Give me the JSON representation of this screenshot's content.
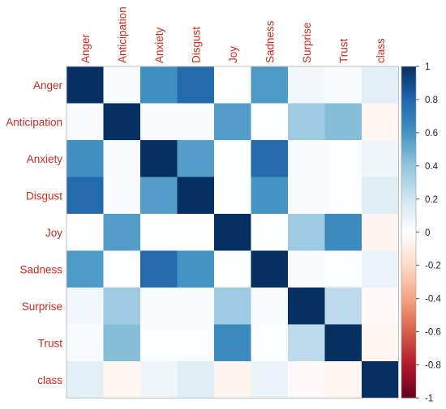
{
  "chart_data": {
    "type": "heatmap",
    "variables": [
      "Anger",
      "Anticipation",
      "Anxiety",
      "Disgust",
      "Joy",
      "Sadness",
      "Surprise",
      "Trust",
      "class"
    ],
    "matrix": [
      [
        1.0,
        0.03,
        0.62,
        0.78,
        0.01,
        0.57,
        0.06,
        0.03,
        0.12
      ],
      [
        0.03,
        1.0,
        0.04,
        0.03,
        0.56,
        0.02,
        0.36,
        0.43,
        -0.05
      ],
      [
        0.62,
        0.04,
        1.0,
        0.56,
        0.01,
        0.78,
        0.04,
        0.02,
        0.07
      ],
      [
        0.78,
        0.03,
        0.56,
        1.0,
        0.01,
        0.6,
        0.04,
        0.02,
        0.14
      ],
      [
        0.01,
        0.56,
        0.01,
        0.01,
        1.0,
        0.01,
        0.36,
        0.64,
        -0.06
      ],
      [
        0.57,
        0.02,
        0.78,
        0.6,
        0.01,
        1.0,
        0.03,
        0.02,
        0.09
      ],
      [
        0.06,
        0.36,
        0.04,
        0.04,
        0.36,
        0.03,
        1.0,
        0.26,
        -0.03
      ],
      [
        0.03,
        0.43,
        0.02,
        0.02,
        0.64,
        0.02,
        0.26,
        1.0,
        -0.05
      ],
      [
        0.12,
        -0.05,
        0.07,
        0.14,
        -0.06,
        0.09,
        -0.03,
        -0.05,
        1.0
      ]
    ],
    "colorbar": {
      "range": [
        -1,
        1
      ],
      "ticks": [
        "1",
        "0.8",
        "0.6",
        "0.4",
        "0.2",
        "0",
        "-0.2",
        "-0.4",
        "-0.6",
        "-0.8",
        "-1"
      ],
      "placement": "right"
    },
    "label_color": "#cc2a1f",
    "colors": {
      "negative_strong": "#67001f",
      "neutral": "#ffffff",
      "positive_strong": "#053061"
    }
  }
}
